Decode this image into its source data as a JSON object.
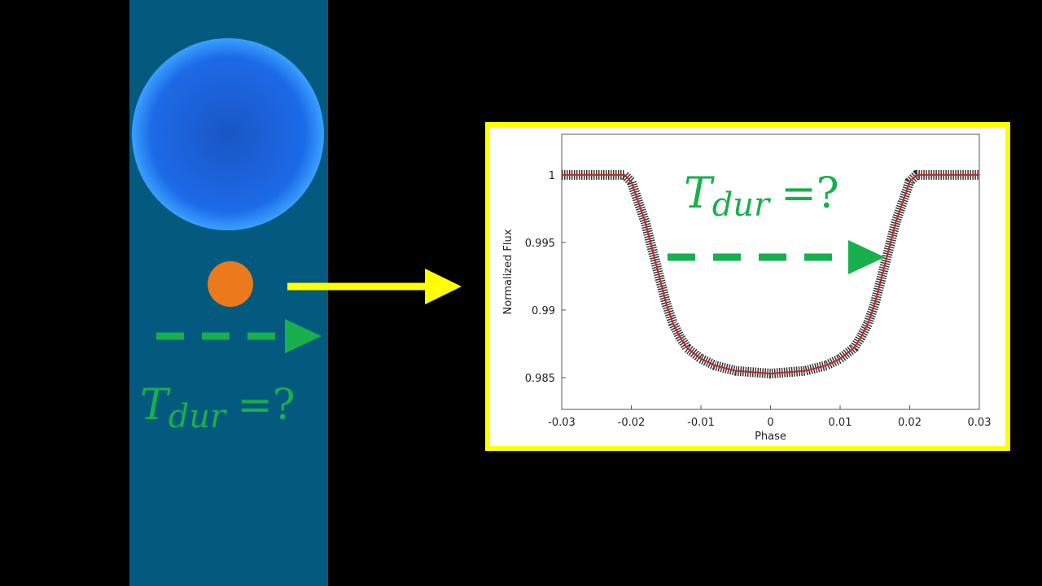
{
  "chart_data": {
    "type": "line",
    "xlabel": "Phase",
    "ylabel": "Normalized Flux",
    "x": [
      -0.03,
      -0.021,
      -0.02,
      -0.019,
      -0.018,
      -0.017,
      -0.016,
      -0.015,
      -0.014,
      -0.013,
      -0.012,
      -0.01,
      -0.008,
      -0.005,
      0,
      0.005,
      0.008,
      0.01,
      0.012,
      0.013,
      0.014,
      0.015,
      0.016,
      0.017,
      0.018,
      0.019,
      0.02,
      0.021,
      0.03
    ],
    "values": [
      1,
      1,
      0.9995,
      0.998,
      0.9965,
      0.9945,
      0.9925,
      0.9905,
      0.989,
      0.988,
      0.9872,
      0.9864,
      0.9859,
      0.9855,
      0.9853,
      0.9855,
      0.9859,
      0.9864,
      0.9872,
      0.988,
      0.989,
      0.9905,
      0.9925,
      0.9945,
      0.9965,
      0.998,
      0.9995,
      1,
      1
    ],
    "color": "#c0282a",
    "xlim": [
      -0.03,
      0.03
    ],
    "xticks": [
      -0.03,
      -0.02,
      -0.01,
      0,
      0.01,
      0.02,
      0.03
    ],
    "ylim": [
      0.98265,
      1.003
    ],
    "yticks": [
      0.985,
      0.99,
      0.995,
      1
    ]
  },
  "annotations": [
    {
      "symbol": "T",
      "subscript": "dur",
      "suffix": "=?"
    },
    {
      "symbol": "T",
      "subscript": "dur",
      "suffix": "=?"
    }
  ]
}
